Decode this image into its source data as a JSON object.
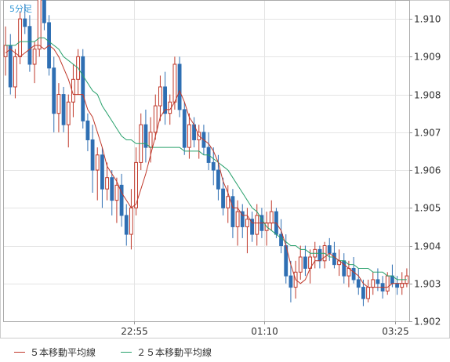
{
  "chart_data": {
    "type": "candlestick",
    "period_label": "5分足",
    "y_ticks": [
      "1.902",
      "1.903",
      "1.904",
      "1.905",
      "1.906",
      "1.907",
      "1.908",
      "1.909",
      "1.910"
    ],
    "x_ticks": [
      "22:55",
      "01:10",
      "03:25"
    ],
    "ylim": [
      1.902,
      1.9105
    ],
    "grid": true,
    "colors": {
      "up": "#c0392b",
      "down": "#2f6fb3",
      "ma5": "#c0392b",
      "ma25": "#27a06b"
    },
    "ohlc": [
      [
        1.909,
        1.9098,
        1.9085,
        1.9093
      ],
      [
        1.9093,
        1.9096,
        1.908,
        1.9082
      ],
      [
        1.9082,
        1.9092,
        1.9079,
        1.909
      ],
      [
        1.909,
        1.9102,
        1.9088,
        1.91
      ],
      [
        1.91,
        1.9104,
        1.9096,
        1.9098
      ],
      [
        1.9098,
        1.9101,
        1.9086,
        1.9088
      ],
      [
        1.9088,
        1.9094,
        1.9083,
        1.9092
      ],
      [
        1.9092,
        1.9112,
        1.909,
        1.9106
      ],
      [
        1.9106,
        1.911,
        1.9097,
        1.9099
      ],
      [
        1.9099,
        1.9101,
        1.9085,
        1.9087
      ],
      [
        1.9087,
        1.909,
        1.907,
        1.9075
      ],
      [
        1.9075,
        1.9083,
        1.907,
        1.908
      ],
      [
        1.908,
        1.9082,
        1.907,
        1.9072
      ],
      [
        1.9072,
        1.908,
        1.9066,
        1.9078
      ],
      [
        1.9078,
        1.9088,
        1.9074,
        1.9084
      ],
      [
        1.9084,
        1.9092,
        1.908,
        1.909
      ],
      [
        1.909,
        1.9092,
        1.9071,
        1.9073
      ],
      [
        1.9073,
        1.9075,
        1.9065,
        1.9068
      ],
      [
        1.9068,
        1.9072,
        1.9054,
        1.906
      ],
      [
        1.906,
        1.9066,
        1.9052,
        1.9064
      ],
      [
        1.9064,
        1.9066,
        1.905,
        1.9055
      ],
      [
        1.9055,
        1.9062,
        1.9052,
        1.9058
      ],
      [
        1.9058,
        1.906,
        1.9048,
        1.9052
      ],
      [
        1.9052,
        1.9058,
        1.9046,
        1.9056
      ],
      [
        1.9056,
        1.9059,
        1.9045,
        1.9048
      ],
      [
        1.9048,
        1.9051,
        1.904,
        1.9043
      ],
      [
        1.9043,
        1.9055,
        1.9039,
        1.905
      ],
      [
        1.905,
        1.9066,
        1.9048,
        1.9062
      ],
      [
        1.9062,
        1.9075,
        1.906,
        1.9072
      ],
      [
        1.9072,
        1.9076,
        1.9062,
        1.9066
      ],
      [
        1.9066,
        1.9074,
        1.9062,
        1.907
      ],
      [
        1.907,
        1.908,
        1.9068,
        1.9077
      ],
      [
        1.9077,
        1.9085,
        1.9073,
        1.9082
      ],
      [
        1.9082,
        1.9086,
        1.9072,
        1.9075
      ],
      [
        1.9075,
        1.908,
        1.9072,
        1.9078
      ],
      [
        1.9078,
        1.909,
        1.9076,
        1.9088
      ],
      [
        1.9088,
        1.909,
        1.9074,
        1.9076
      ],
      [
        1.9076,
        1.9078,
        1.9064,
        1.9066
      ],
      [
        1.9066,
        1.9075,
        1.9063,
        1.9072
      ],
      [
        1.9072,
        1.9074,
        1.9066,
        1.9068
      ],
      [
        1.9068,
        1.9072,
        1.9063,
        1.907
      ],
      [
        1.907,
        1.9072,
        1.9064,
        1.9066
      ],
      [
        1.9066,
        1.907,
        1.906,
        1.9062
      ],
      [
        1.9062,
        1.9066,
        1.9056,
        1.906
      ],
      [
        1.906,
        1.9064,
        1.9052,
        1.9055
      ],
      [
        1.9055,
        1.9058,
        1.9048,
        1.905
      ],
      [
        1.905,
        1.9056,
        1.9046,
        1.9053
      ],
      [
        1.9053,
        1.9055,
        1.9042,
        1.9045
      ],
      [
        1.9045,
        1.9052,
        1.904,
        1.9049
      ],
      [
        1.9049,
        1.9051,
        1.9042,
        1.9045
      ],
      [
        1.9045,
        1.905,
        1.9038,
        1.9047
      ],
      [
        1.9047,
        1.9049,
        1.9041,
        1.9043
      ],
      [
        1.9043,
        1.9051,
        1.904,
        1.9048
      ],
      [
        1.9048,
        1.905,
        1.9042,
        1.9044
      ],
      [
        1.9044,
        1.9049,
        1.904,
        1.9046
      ],
      [
        1.9046,
        1.9052,
        1.9044,
        1.9049
      ],
      [
        1.9049,
        1.905,
        1.9042,
        1.9043
      ],
      [
        1.9043,
        1.9047,
        1.9038,
        1.904
      ],
      [
        1.904,
        1.9043,
        1.903,
        1.9032
      ],
      [
        1.9032,
        1.9036,
        1.9025,
        1.9029
      ],
      [
        1.9029,
        1.9036,
        1.9026,
        1.9033
      ],
      [
        1.9033,
        1.904,
        1.9031,
        1.9037
      ],
      [
        1.9037,
        1.904,
        1.9032,
        1.9034
      ],
      [
        1.9034,
        1.9039,
        1.903,
        1.9037
      ],
      [
        1.9037,
        1.9041,
        1.9034,
        1.9039
      ],
      [
        1.9039,
        1.904,
        1.9034,
        1.9036
      ],
      [
        1.9036,
        1.9041,
        1.9034,
        1.904
      ],
      [
        1.904,
        1.9042,
        1.9036,
        1.9038
      ],
      [
        1.9038,
        1.9041,
        1.9034,
        1.9035
      ],
      [
        1.9035,
        1.9039,
        1.9032,
        1.9036
      ],
      [
        1.9036,
        1.9038,
        1.903,
        1.9032
      ],
      [
        1.9032,
        1.9036,
        1.9029,
        1.9034
      ],
      [
        1.9034,
        1.9037,
        1.903,
        1.9031
      ],
      [
        1.9031,
        1.9034,
        1.9027,
        1.9029
      ],
      [
        1.9029,
        1.9031,
        1.9024,
        1.9026
      ],
      [
        1.9026,
        1.9031,
        1.9025,
        1.9029
      ],
      [
        1.9029,
        1.9033,
        1.9027,
        1.9031
      ],
      [
        1.9031,
        1.9034,
        1.9028,
        1.903
      ],
      [
        1.903,
        1.9032,
        1.9026,
        1.9028
      ],
      [
        1.9028,
        1.9033,
        1.9027,
        1.9032
      ],
      [
        1.9032,
        1.9035,
        1.9029,
        1.903
      ],
      [
        1.903,
        1.9032,
        1.9027,
        1.9029
      ],
      [
        1.9029,
        1.9033,
        1.9027,
        1.903
      ],
      [
        1.903,
        1.9034,
        1.9029,
        1.9032
      ]
    ],
    "ma5": [
      1.9091,
      1.9092,
      1.9091,
      1.909,
      1.9091,
      1.9092,
      1.9093,
      1.9093,
      1.9092,
      1.9093,
      1.9092,
      1.909,
      1.9087,
      1.9084,
      1.908,
      1.908,
      1.908,
      1.9076,
      1.9074,
      1.907,
      1.9066,
      1.9061,
      1.9059,
      1.9057,
      1.9054,
      1.9052,
      1.905,
      1.9051,
      1.9055,
      1.9059,
      1.9064,
      1.9069,
      1.9074,
      1.9076,
      1.9076,
      1.9078,
      1.9081,
      1.9078,
      1.9074,
      1.9072,
      1.9069,
      1.9068,
      1.9067,
      1.9065,
      1.9062,
      1.9057,
      1.9054,
      1.905,
      1.905,
      1.9048,
      1.9048,
      1.9046,
      1.9046,
      1.9046,
      1.9046,
      1.9046,
      1.9046,
      1.9044,
      1.904,
      1.9035,
      1.9031,
      1.903,
      1.9031,
      1.9034,
      1.9036,
      1.9036,
      1.9037,
      1.9038,
      1.9037,
      1.9036,
      1.9035,
      1.9034,
      1.9033,
      1.9032,
      1.903,
      1.9029,
      1.9029,
      1.9029,
      1.9029,
      1.9029,
      1.903,
      1.903,
      1.903,
      1.903
    ],
    "ma25": [
      1.9093,
      1.9093,
      1.9093,
      1.9094,
      1.9094,
      1.9094,
      1.9094,
      1.9095,
      1.9095,
      1.9094,
      1.9093,
      1.9092,
      1.909,
      1.9089,
      1.9088,
      1.9087,
      1.9085,
      1.9083,
      1.9081,
      1.908,
      1.9077,
      1.9075,
      1.9073,
      1.9071,
      1.9069,
      1.9068,
      1.9068,
      1.9067,
      1.9067,
      1.9067,
      1.9066,
      1.9066,
      1.9066,
      1.9066,
      1.9066,
      1.9066,
      1.9066,
      1.9065,
      1.9065,
      1.9065,
      1.9065,
      1.9064,
      1.9064,
      1.9063,
      1.9062,
      1.9061,
      1.906,
      1.9058,
      1.9056,
      1.9054,
      1.9052,
      1.905,
      1.9049,
      1.9047,
      1.9045,
      1.9044,
      1.9043,
      1.9042,
      1.9041,
      1.904,
      1.904,
      1.9039,
      1.9039,
      1.9038,
      1.9038,
      1.9038,
      1.9038,
      1.9037,
      1.9037,
      1.9036,
      1.9036,
      1.9035,
      1.9035,
      1.9034,
      1.9034,
      1.9034,
      1.9033,
      1.9033,
      1.9033,
      1.9032,
      1.9032,
      1.9031,
      1.9031,
      1.9031
    ],
    "legend": [
      {
        "label": "５本移動平均線",
        "color": "#c0392b"
      },
      {
        "label": "２５本移動平均線",
        "color": "#27a06b"
      }
    ]
  }
}
